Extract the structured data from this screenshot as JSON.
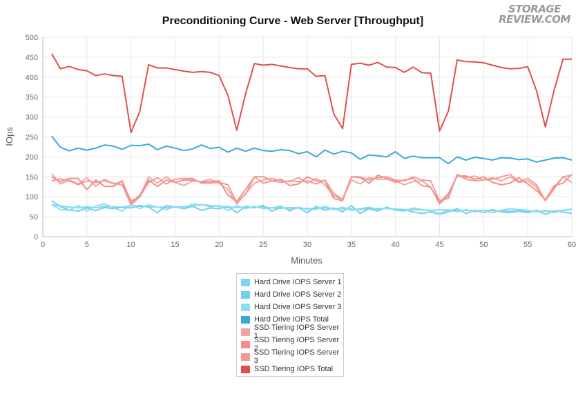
{
  "logo": {
    "line1": "STORAGE",
    "line2": "REVIEW.COM"
  },
  "chart_data": {
    "type": "line",
    "title": "Preconditioning Curve - Web Server [Throughput]",
    "xlabel": "Minutes",
    "ylabel": "IOps",
    "xlim": [
      0,
      60
    ],
    "ylim": [
      0,
      500
    ],
    "xticks": [
      0,
      5,
      10,
      15,
      20,
      25,
      30,
      35,
      40,
      45,
      50,
      55,
      60
    ],
    "yticks": [
      0,
      50,
      100,
      150,
      200,
      250,
      300,
      350,
      400,
      450,
      500
    ],
    "grid": true,
    "legend_position": "bottom-center",
    "x": [
      1,
      2,
      3,
      4,
      5,
      6,
      7,
      8,
      9,
      10,
      11,
      12,
      13,
      14,
      15,
      16,
      17,
      18,
      19,
      20,
      21,
      22,
      23,
      24,
      25,
      26,
      27,
      28,
      29,
      30,
      31,
      32,
      33,
      34,
      35,
      36,
      37,
      38,
      39,
      40,
      41,
      42,
      43,
      44,
      45,
      46,
      47,
      48,
      49,
      50,
      51,
      52,
      53,
      54,
      55,
      56,
      57,
      58,
      59,
      60
    ],
    "series": [
      {
        "name": "Hard Drive IOPS Server 1",
        "color": "#7fd6f2",
        "values": [
          80,
          77,
          74,
          72,
          75,
          72,
          76,
          75,
          73,
          78,
          76,
          75,
          74,
          73,
          74,
          75,
          77,
          80,
          78,
          76,
          74,
          73,
          74,
          73,
          74,
          72,
          71,
          73,
          72,
          70,
          71,
          72,
          71,
          70,
          69,
          68,
          70,
          71,
          70,
          69,
          68,
          68,
          67,
          66,
          67,
          67,
          66,
          66,
          65,
          66,
          65,
          65,
          64,
          65,
          64,
          64,
          64,
          64,
          66,
          68
        ]
      },
      {
        "name": "Hard Drive IOPS Server 2",
        "color": "#6fd0ef",
        "values": [
          90,
          75,
          67,
          64,
          72,
          65,
          73,
          70,
          74,
          72,
          78,
          74,
          60,
          78,
          74,
          70,
          76,
          66,
          72,
          70,
          76,
          60,
          76,
          72,
          78,
          64,
          74,
          68,
          72,
          60,
          76,
          66,
          72,
          62,
          78,
          58,
          70,
          64,
          74,
          66,
          68,
          62,
          58,
          62,
          56,
          62,
          70,
          58,
          66,
          60,
          68,
          62,
          60,
          64,
          60,
          66,
          56,
          64,
          62,
          58
        ]
      },
      {
        "name": "Hard Drive IOPS Server 3",
        "color": "#8fdcf3",
        "values": [
          80,
          68,
          66,
          78,
          64,
          77,
          82,
          73,
          64,
          80,
          70,
          80,
          74,
          68,
          75,
          72,
          82,
          80,
          75,
          78,
          66,
          78,
          70,
          76,
          70,
          72,
          77,
          64,
          74,
          68,
          68,
          76,
          68,
          74,
          66,
          70,
          74,
          68,
          72,
          66,
          64,
          72,
          68,
          64,
          58,
          66,
          62,
          68,
          62,
          66,
          60,
          66,
          70,
          68,
          66,
          62,
          66,
          60,
          66,
          70
        ]
      },
      {
        "name": "Hard Drive IOPS Total",
        "color": "#3aa9d8",
        "values": [
          252,
          224,
          215,
          222,
          217,
          222,
          230,
          227,
          219,
          229,
          228,
          232,
          218,
          227,
          222,
          216,
          220,
          230,
          221,
          224,
          212,
          222,
          214,
          222,
          216,
          214,
          218,
          216,
          208,
          213,
          200,
          217,
          207,
          214,
          210,
          194,
          205,
          203,
          200,
          213,
          196,
          202,
          198,
          198,
          198,
          183,
          200,
          192,
          199,
          196,
          192,
          198,
          197,
          193,
          195,
          187,
          192,
          197,
          198,
          192
        ]
      },
      {
        "name": "SSD Tiering IOPS Server 1",
        "color": "#f5a3a0",
        "values": [
          158,
          132,
          142,
          132,
          148,
          126,
          144,
          132,
          138,
          90,
          100,
          150,
          134,
          150,
          136,
          128,
          140,
          138,
          144,
          134,
          118,
          82,
          108,
          134,
          142,
          146,
          140,
          138,
          148,
          134,
          146,
          130,
          102,
          94,
          142,
          132,
          148,
          144,
          144,
          140,
          130,
          138,
          140,
          124,
          82,
          102,
          152,
          148,
          152,
          142,
          148,
          140,
          150,
          136,
          140,
          124,
          90,
          124,
          150,
          136
        ]
      },
      {
        "name": "SSD Tiering IOPS Server 2",
        "color": "#f48e8a",
        "values": [
          150,
          138,
          146,
          146,
          118,
          142,
          126,
          126,
          140,
          84,
          104,
          142,
          126,
          142,
          136,
          142,
          142,
          136,
          138,
          140,
          104,
          88,
          118,
          150,
          150,
          140,
          144,
          128,
          132,
          150,
          140,
          140,
          96,
          90,
          150,
          148,
          134,
          154,
          146,
          136,
          142,
          146,
          128,
          124,
          86,
          108,
          152,
          152,
          144,
          150,
          136,
          130,
          134,
          148,
          132,
          116,
          92,
          128,
          134,
          156
        ]
      },
      {
        "name": "SSD Tiering IOPS Server 3",
        "color": "#f29a97",
        "values": [
          140,
          145,
          140,
          130,
          140,
          136,
          140,
          134,
          130,
          80,
          100,
          136,
          148,
          132,
          144,
          146,
          146,
          134,
          134,
          136,
          130,
          86,
          106,
          150,
          134,
          140,
          136,
          140,
          138,
          140,
          132,
          142,
          108,
          94,
          150,
          150,
          142,
          148,
          150,
          142,
          140,
          150,
          142,
          140,
          90,
          96,
          156,
          144,
          140,
          142,
          144,
          150,
          156,
          138,
          146,
          130,
          90,
          120,
          150,
          154
        ]
      },
      {
        "name": "SSD Tiering IOPS Total",
        "color": "#e04e4a",
        "values": [
          459,
          421,
          427,
          419,
          416,
          404,
          408,
          404,
          402,
          261,
          314,
          431,
          423,
          423,
          419,
          415,
          412,
          414,
          412,
          404,
          354,
          267,
          358,
          434,
          430,
          432,
          428,
          424,
          421,
          421,
          402,
          404,
          308,
          271,
          432,
          435,
          430,
          437,
          425,
          424,
          412,
          425,
          411,
          410,
          265,
          315,
          443,
          439,
          438,
          436,
          430,
          424,
          421,
          422,
          426,
          366,
          275,
          368,
          445,
          445
        ]
      }
    ]
  }
}
